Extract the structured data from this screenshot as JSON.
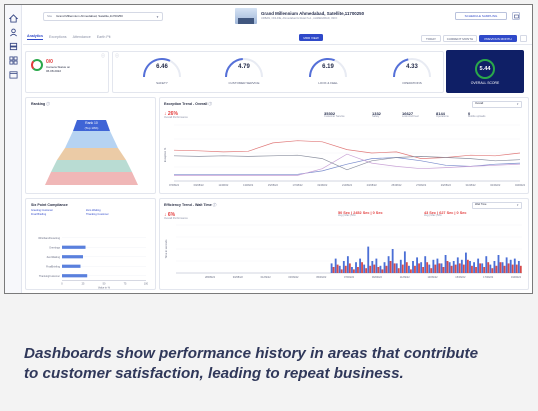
{
  "colors": {
    "accent": "#2f49c9",
    "danger": "#e23b3b",
    "success": "#2aa84a",
    "score_bg": "#0f1f66"
  },
  "rail": {
    "icons": [
      "home-icon",
      "user-icon",
      "layers-icon",
      "grid-icon",
      "calendar-icon"
    ]
  },
  "header": {
    "site_select_prefix": "Site",
    "site_select_value": "Grand Millennium Ahmedabad, Satellite,11700250",
    "store_title": "Grand Millennium Ahmedabad, Satellite,11700250",
    "store_address": "URBAN, ONLINE, Ahmedabad & Retail S.A., AHMEDABAD, INFO",
    "schedule_button": "SCHEDULE SAMPLING"
  },
  "tabs": [
    "Analytics",
    "Exceptions",
    "Attendance",
    "Earth Pit"
  ],
  "active_tab": "Analytics",
  "toolbar": {
    "center_button": "MRR VIEW",
    "period_buttons": [
      "TODAY",
      "CURRENT MONTH",
      "PREVIOUS MONTH"
    ],
    "active_period": "PREVIOUS MONTH"
  },
  "camera": {
    "count": "0/0",
    "label": "Camera Status on",
    "date": "06.08.2022"
  },
  "kpis": [
    {
      "value": "6.46",
      "label": "SAFETY"
    },
    {
      "value": "4.79",
      "label": "CUSTOMER SERVICE"
    },
    {
      "value": "6.19",
      "label": "LOOK & FEEL"
    },
    {
      "value": "4.33",
      "label": "OPERATIONS"
    }
  ],
  "overall": {
    "value": "5.44",
    "label": "OVERALL SCORE"
  },
  "ranking": {
    "title": "Ranking",
    "top_label": "Rank 10",
    "top_sub": "(Top 10%)"
  },
  "exception": {
    "title": "Exception Trend - Overall",
    "select": "Overall",
    "big_value": "↓ 26%",
    "big_label": "Overall Performance",
    "metrics": [
      {
        "value": "35302",
        "label": "Customer Service"
      },
      {
        "value": "1332",
        "label": "Safety"
      },
      {
        "value": "16627",
        "label": "Look And Feel"
      },
      {
        "value": "8144",
        "label": "Operations"
      },
      {
        "value": "0",
        "label": "Mobile uploads"
      }
    ],
    "ylabel": "Exception %",
    "x_ticks": [
      "07/08/22",
      "09/08/22",
      "11/08/22",
      "13/08/22",
      "15/08/22",
      "17/08/22",
      "19/08/22",
      "21/08/22",
      "23/08/22",
      "25/08/22",
      "27/08/22",
      "29/08/22",
      "31/08/22",
      "02/09/22",
      "04/09/22"
    ]
  },
  "six_point": {
    "title": "Six Point Compliance",
    "legend": [
      "Greeting Customer",
      "Zero Waiting",
      "Final Briefing",
      "Thanking Customer"
    ],
    "xlabel": "Value in %"
  },
  "efficiency": {
    "title": "Efficiency Trend - Wait Time",
    "select": "Wait Time",
    "big_value": "↓ 6%",
    "big_label": "Overall Performance",
    "stat1": "50 Sec | 2452 Sec | 0 Sec",
    "stat1_label": "Avg | Max | Min",
    "stat2": "43 Sec | 627 Sec | 0 Sec",
    "stat2_label": "Avg | Max | Min",
    "ylabel": "Time in seconds",
    "x_ticks": [
      "28/08/22",
      "30/08/22",
      "01/09/22",
      "03/09/22",
      "05/09/22",
      "07/09/22",
      "09/09/22",
      "11/09/22",
      "13/09/22",
      "15/09/22",
      "17/09/22",
      "19/09/22"
    ]
  },
  "chart_data": [
    {
      "type": "bar",
      "title": "Six Point Compliance",
      "categories": [
        "Wristband/Gowning",
        "Greetings",
        "ZeroWaiting",
        "FinalBriefing",
        "ThankingCustomer"
      ],
      "series": [
        {
          "name": "Greeting Customer",
          "values": [
            0,
            28,
            0,
            0,
            0
          ]
        },
        {
          "name": "Zero Waiting",
          "values": [
            0,
            0,
            25,
            0,
            0
          ]
        },
        {
          "name": "Final Briefing",
          "values": [
            0,
            0,
            0,
            22,
            0
          ]
        },
        {
          "name": "Thanking Customer",
          "values": [
            0,
            0,
            0,
            0,
            30
          ]
        }
      ],
      "xlim": [
        0,
        100
      ],
      "x_ticks": [
        "0",
        "25",
        "50",
        "75",
        "100"
      ],
      "xlabel": "Value in %"
    },
    {
      "type": "line",
      "title": "Exception Trend - Overall",
      "x": [
        "07/08/22",
        "09/08/22",
        "11/08/22",
        "13/08/22",
        "15/08/22",
        "17/08/22",
        "19/08/22",
        "21/08/22",
        "23/08/22",
        "25/08/22",
        "27/08/22",
        "29/08/22",
        "31/08/22",
        "02/09/22",
        "04/09/22"
      ],
      "series": [
        {
          "name": "Customer Service",
          "values": [
            55,
            54,
            52,
            53,
            68,
            72,
            70,
            56,
            50,
            52,
            40,
            42,
            46,
            45,
            50
          ]
        },
        {
          "name": "Safety",
          "values": [
            12,
            12,
            12,
            12,
            12,
            12,
            18,
            30,
            40,
            42,
            36,
            28,
            26,
            30,
            32
          ]
        },
        {
          "name": "Look And Feel",
          "values": [
            10,
            10,
            10,
            10,
            10,
            10,
            22,
            48,
            32,
            26,
            22,
            24,
            26,
            28,
            30
          ]
        },
        {
          "name": "Operations",
          "values": [
            45,
            44,
            45,
            44,
            45,
            46,
            40,
            20,
            36,
            42,
            44,
            42,
            40,
            36,
            38
          ]
        }
      ],
      "ylim": [
        0,
        100
      ],
      "ylabel": "Exception %"
    },
    {
      "type": "bar",
      "title": "Efficiency Trend - Wait Time",
      "x_ticks": [
        "28/08/22",
        "30/08/22",
        "01/09/22",
        "03/09/22",
        "05/09/22",
        "07/09/22",
        "09/09/22",
        "11/09/22",
        "13/09/22",
        "15/09/22",
        "17/09/22",
        "19/09/22"
      ],
      "series": [
        {
          "name": "Blue",
          "values": [
            0,
            0,
            0,
            0,
            0,
            0,
            0,
            0,
            0,
            0,
            0,
            0,
            0,
            0,
            0,
            0,
            0,
            0,
            0,
            0,
            0,
            0,
            0,
            0,
            0,
            0,
            0,
            0,
            0,
            0,
            0,
            0,
            0,
            0,
            0,
            0,
            0,
            0,
            8,
            12,
            6,
            10,
            14,
            5,
            9,
            12,
            7,
            22,
            10,
            12,
            6,
            9,
            14,
            20,
            8,
            11,
            18,
            6,
            10,
            13,
            9,
            14,
            7,
            11,
            12,
            8,
            15,
            9,
            10,
            13,
            11,
            17,
            10,
            9,
            12,
            8,
            14,
            7,
            10,
            15,
            9,
            13,
            11,
            12,
            10
          ]
        },
        {
          "name": "Red",
          "values": [
            0,
            0,
            0,
            0,
            0,
            0,
            0,
            0,
            0,
            0,
            0,
            0,
            0,
            0,
            0,
            0,
            0,
            0,
            0,
            0,
            0,
            0,
            0,
            0,
            0,
            0,
            0,
            0,
            0,
            0,
            0,
            0,
            0,
            0,
            0,
            0,
            0,
            0,
            5,
            7,
            3,
            6,
            8,
            3,
            5,
            9,
            4,
            6,
            7,
            5,
            3,
            6,
            10,
            8,
            4,
            7,
            9,
            3,
            6,
            8,
            5,
            9,
            4,
            7,
            8,
            5,
            10,
            6,
            7,
            8,
            7,
            11,
            6,
            5,
            8,
            5,
            9,
            4,
            6,
            9,
            6,
            8,
            7,
            7,
            6
          ]
        }
      ],
      "ylim": [
        0,
        40
      ],
      "ylabel": "Time in seconds"
    }
  ],
  "caption": [
    "Dashboards show performance history in areas that contribute",
    "to customer satisfaction, leading to repeat business."
  ]
}
